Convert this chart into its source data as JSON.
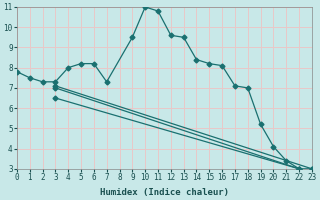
{
  "xlabel": "Humidex (Indice chaleur)",
  "bg_color": "#c8e8e8",
  "grid_color": "#e8c8c8",
  "line_color": "#1a7070",
  "line1_x": [
    0,
    1,
    2,
    3,
    4,
    5,
    6,
    7,
    9,
    10,
    11,
    12,
    13,
    14,
    15,
    16,
    17,
    18,
    19,
    20,
    21,
    22,
    23
  ],
  "line1_y": [
    7.8,
    7.5,
    7.3,
    7.3,
    8.0,
    8.2,
    8.2,
    7.3,
    9.5,
    11.0,
    10.8,
    9.6,
    9.5,
    8.4,
    8.2,
    8.1,
    7.1,
    7.0,
    5.2,
    4.1,
    3.4,
    3.0,
    3.0
  ],
  "line2_x": [
    3,
    22
  ],
  "line2_y": [
    6.5,
    3.0
  ],
  "line3_x": [
    3,
    22
  ],
  "line3_y": [
    7.0,
    3.0
  ],
  "line4_x": [
    3,
    23
  ],
  "line4_y": [
    7.1,
    3.0
  ],
  "ylim": [
    3,
    11
  ],
  "xlim": [
    0,
    23
  ],
  "yticks": [
    3,
    4,
    5,
    6,
    7,
    8,
    9,
    10,
    11
  ],
  "xticks": [
    0,
    1,
    2,
    3,
    4,
    5,
    6,
    7,
    8,
    9,
    10,
    11,
    12,
    13,
    14,
    15,
    16,
    17,
    18,
    19,
    20,
    21,
    22,
    23
  ],
  "xlabel_fontsize": 6.5,
  "tick_fontsize": 5.5
}
